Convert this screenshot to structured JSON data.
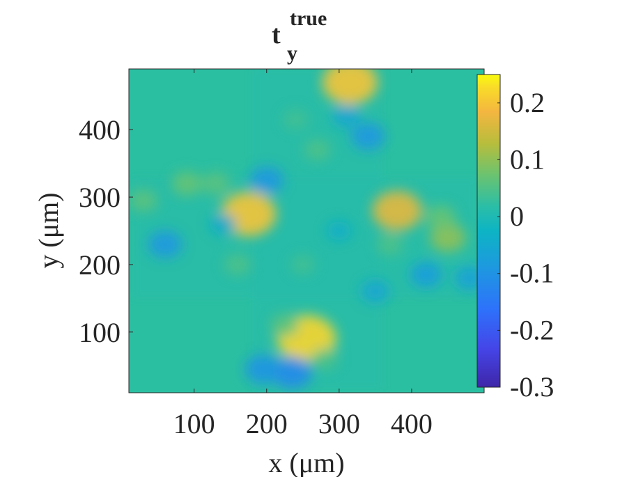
{
  "chart_data": {
    "type": "heatmap",
    "title": {
      "base": "t",
      "subscript": "y",
      "superscript": "true"
    },
    "xlabel": "x (μm)",
    "ylabel": "y (μm)",
    "xlim": [
      10,
      500
    ],
    "ylim": [
      10,
      490
    ],
    "x_ticks": [
      100,
      200,
      300,
      400
    ],
    "y_ticks": [
      100,
      200,
      300,
      400
    ],
    "x_tick_labels": [
      "100",
      "200",
      "300",
      "400"
    ],
    "y_tick_labels": [
      "100",
      "200",
      "300",
      "400"
    ],
    "colorbar": {
      "range": [
        -0.3,
        0.25
      ],
      "ticks": [
        0.2,
        0.1,
        0,
        -0.1,
        -0.2,
        -0.3
      ],
      "tick_labels": [
        "0.2",
        "0.1",
        "0",
        "-0.1",
        "-0.2",
        "-0.3"
      ],
      "colormap": "parula"
    },
    "background_value": 0,
    "region": {
      "shape": "cross",
      "vertical_arm": {
        "x": [
          180,
          360
        ],
        "y": [
          15,
          490
        ]
      },
      "horizontal_arm": {
        "x": [
          15,
          490
        ],
        "y": [
          150,
          330
        ]
      }
    },
    "features": [
      {
        "x": 315,
        "y": 470,
        "value": 0.2
      },
      {
        "x": 255,
        "y": 90,
        "value": 0.22
      },
      {
        "x": 175,
        "y": 275,
        "value": 0.2
      },
      {
        "x": 380,
        "y": 280,
        "value": 0.17
      },
      {
        "x": 235,
        "y": 40,
        "value": -0.12
      },
      {
        "x": 195,
        "y": 45,
        "value": -0.1
      },
      {
        "x": 340,
        "y": 390,
        "value": -0.09
      },
      {
        "x": 200,
        "y": 325,
        "value": -0.09
      },
      {
        "x": 60,
        "y": 230,
        "value": -0.09
      },
      {
        "x": 420,
        "y": 185,
        "value": -0.08
      },
      {
        "x": 480,
        "y": 180,
        "value": -0.07
      },
      {
        "x": 90,
        "y": 320,
        "value": 0.07
      },
      {
        "x": 130,
        "y": 320,
        "value": 0.06
      },
      {
        "x": 30,
        "y": 295,
        "value": 0.06
      },
      {
        "x": 450,
        "y": 240,
        "value": 0.1
      },
      {
        "x": 440,
        "y": 270,
        "value": 0.07
      },
      {
        "x": 310,
        "y": 420,
        "value": -0.06
      },
      {
        "x": 270,
        "y": 370,
        "value": 0.05
      },
      {
        "x": 250,
        "y": 200,
        "value": 0.04
      },
      {
        "x": 300,
        "y": 250,
        "value": -0.04
      },
      {
        "x": 160,
        "y": 200,
        "value": 0.05
      },
      {
        "x": 350,
        "y": 160,
        "value": -0.06
      },
      {
        "x": 225,
        "y": 110,
        "value": 0.06
      },
      {
        "x": 280,
        "y": 60,
        "value": 0.05
      },
      {
        "x": 240,
        "y": 415,
        "value": 0.04
      },
      {
        "x": 140,
        "y": 260,
        "value": -0.05
      },
      {
        "x": 370,
        "y": 230,
        "value": 0.05
      }
    ]
  }
}
